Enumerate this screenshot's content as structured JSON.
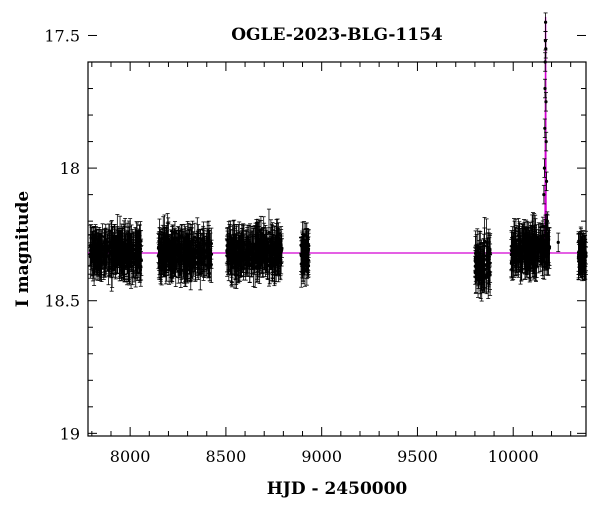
{
  "chart_data": {
    "type": "scatter",
    "title": "OGLE-2023-BLG-1154",
    "xlabel": "HJD - 2450000",
    "ylabel": "I magnitude",
    "xlim": [
      7780,
      10380
    ],
    "ylim": [
      19.01,
      17.6
    ],
    "y_inverted": true,
    "x_ticks": [
      8000,
      8500,
      9000,
      9500,
      10000
    ],
    "y_ticks": [
      17.5,
      18,
      18.5,
      19
    ],
    "y_tick_labels": [
      "17.5",
      "18",
      "18.5",
      "19"
    ],
    "baseline_mag": 18.32,
    "peak": {
      "hjd": 10169,
      "mag": 17.43
    },
    "model_color": "#d400d4",
    "data_color": "#000000",
    "series": [
      {
        "role": "observations",
        "seasons": [
          {
            "x_range": [
              7790,
              8060
            ],
            "mean_mag": 18.32,
            "scatter": 0.07
          },
          {
            "x_range": [
              8145,
              8425
            ],
            "mean_mag": 18.32,
            "scatter": 0.07
          },
          {
            "x_range": [
              8505,
              8795
            ],
            "mean_mag": 18.32,
            "scatter": 0.07
          },
          {
            "x_range": [
              8890,
              8935
            ],
            "mean_mag": 18.32,
            "scatter": 0.06
          },
          {
            "x_range": [
              9800,
              9880
            ],
            "mean_mag": 18.36,
            "scatter": 0.09
          },
          {
            "x_range": [
              9990,
              10190
            ],
            "mean_mag": 18.31,
            "scatter": 0.07
          },
          {
            "x_range": [
              10340,
              10380
            ],
            "mean_mag": 18.33,
            "scatter": 0.03
          }
        ],
        "peak_points": [
          [
            10155,
            18.22
          ],
          [
            10160,
            18.1
          ],
          [
            10163,
            18.0
          ],
          [
            10165,
            17.85
          ],
          [
            10166,
            17.7
          ],
          [
            10167,
            17.6
          ],
          [
            10168,
            17.52
          ],
          [
            10169,
            17.45
          ],
          [
            10170,
            17.55
          ],
          [
            10171,
            17.75
          ],
          [
            10172,
            17.9
          ],
          [
            10174,
            18.05
          ],
          [
            10178,
            18.2
          ],
          [
            10185,
            18.27
          ],
          [
            10235,
            18.28
          ]
        ]
      },
      {
        "role": "model",
        "t0": 10169,
        "tE": 1.9,
        "u0": 0.6
      }
    ]
  }
}
